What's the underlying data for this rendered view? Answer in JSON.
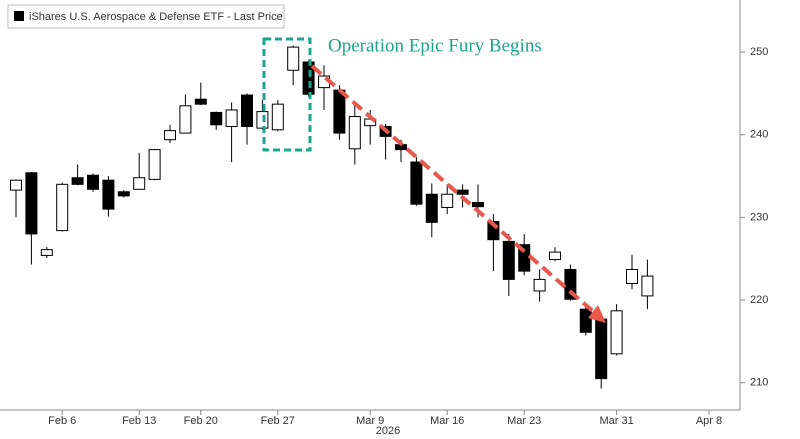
{
  "chart_data": {
    "type": "candlestick",
    "legend": "iShares U.S. Aerospace & Defense ETF - Last Price",
    "annotation": "Operation Epic Fury Begins",
    "xlabel": "2026",
    "categories": [
      null,
      null,
      null,
      "Feb 6",
      null,
      null,
      null,
      null,
      "Feb 13",
      null,
      null,
      null,
      "Feb 20",
      null,
      null,
      null,
      null,
      "Feb 27",
      null,
      null,
      null,
      null,
      null,
      "Mar 9",
      null,
      null,
      null,
      null,
      "Mar 16",
      null,
      null,
      null,
      null,
      "Mar 23",
      null,
      null,
      null,
      null,
      null,
      "Mar 31",
      null,
      null,
      null,
      null,
      null,
      "Apr 8",
      null,
      null,
      null
    ],
    "open": [
      233.3,
      235.4,
      225.4,
      228.4,
      234.8,
      235.1,
      234.5,
      233.1,
      233.4,
      234.6,
      239.4,
      240.2,
      244.3,
      242.7,
      241.0,
      244.8,
      240.8,
      240.6,
      247.8,
      248.8,
      245.7,
      245.4,
      238.3,
      241.1,
      241.0,
      238.8,
      236.7,
      232.8,
      231.2,
      233.3,
      231.8,
      229.5,
      227.1,
      226.7,
      221.1,
      224.9,
      223.7,
      218.9,
      217.7,
      213.5,
      222.0,
      220.5,
      null,
      null,
      null,
      null,
      null,
      null,
      null
    ],
    "high": [
      234.6,
      235.5,
      226.4,
      234.2,
      236.4,
      235.3,
      235.0,
      233.3,
      237.8,
      238.3,
      241.2,
      244.9,
      246.3,
      242.8,
      243.9,
      245.0,
      244.2,
      244.2,
      250.8,
      249.0,
      248.4,
      246.0,
      243.6,
      243.0,
      241.3,
      239.4,
      237.3,
      234.1,
      234.0,
      234.0,
      234.0,
      230.4,
      228.0,
      228.0,
      223.7,
      226.4,
      224.3,
      219.5,
      218.0,
      219.5,
      225.5,
      224.9,
      null,
      null,
      null,
      null,
      null,
      null,
      null
    ],
    "low": [
      230.0,
      224.3,
      225.1,
      228.3,
      233.9,
      233.1,
      230.1,
      232.4,
      233.4,
      234.5,
      239.0,
      240.2,
      243.6,
      240.6,
      236.7,
      238.8,
      240.6,
      240.4,
      246.0,
      244.6,
      243.0,
      239.4,
      236.4,
      238.8,
      237.0,
      236.7,
      231.4,
      227.6,
      230.4,
      231.2,
      230.0,
      223.5,
      220.5,
      223.0,
      219.8,
      224.7,
      219.9,
      215.7,
      209.3,
      213.3,
      221.3,
      218.9,
      null,
      null,
      null,
      null,
      null,
      null,
      null
    ],
    "close": [
      234.5,
      228.0,
      226.1,
      234.0,
      234.0,
      233.4,
      231.0,
      232.6,
      234.8,
      238.2,
      240.5,
      243.5,
      243.7,
      241.2,
      243.0,
      241.0,
      242.8,
      243.7,
      250.6,
      244.9,
      247.1,
      240.2,
      242.2,
      241.9,
      239.8,
      238.2,
      231.6,
      229.4,
      232.8,
      232.8,
      231.3,
      227.3,
      222.5,
      223.5,
      222.5,
      225.8,
      220.1,
      216.1,
      210.5,
      218.7,
      223.7,
      222.9,
      null,
      null,
      null,
      null,
      null,
      null,
      null
    ],
    "up_color": "#ffffff",
    "down_color": "#000000",
    "ylim": [
      206.7,
      256.3
    ],
    "yticks": [
      210,
      220,
      230,
      240,
      250
    ],
    "grid": false
  }
}
